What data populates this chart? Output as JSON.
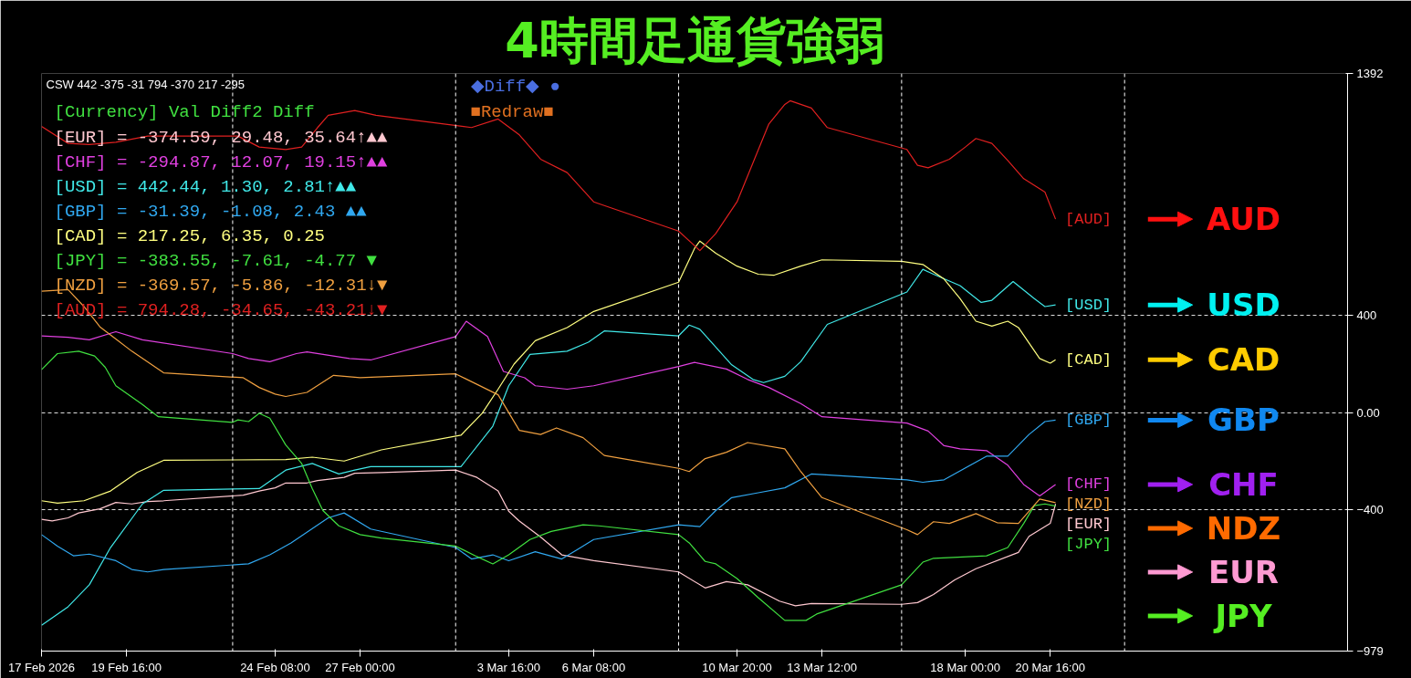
{
  "chart_data": {
    "type": "line",
    "title": "4時間足通貨強弱",
    "xlim": [
      "2026-02-17T00:00",
      "2026-03-30T00:00"
    ],
    "ylim": [
      -979,
      1392
    ],
    "xticks": [
      {
        "value": "2026-02-17T00:00",
        "label": "17 Feb 2026"
      },
      {
        "value": "2026-02-19T16:00",
        "label": "19 Feb 16:00"
      },
      {
        "value": "2026-02-24T08:00",
        "label": "24 Feb 08:00"
      },
      {
        "value": "2026-02-27T00:00",
        "label": "27 Feb 00:00"
      },
      {
        "value": "2026-03-03T16:00",
        "label": "3 Mar 16:00"
      },
      {
        "value": "2026-03-06T08:00",
        "label": "6 Mar 08:00"
      },
      {
        "value": "2026-03-10T20:00",
        "label": "10 Mar 20:00"
      },
      {
        "value": "2026-03-13T12:00",
        "label": "13 Mar 12:00"
      },
      {
        "value": "2026-03-18T00:00",
        "label": "18 Mar 00:00"
      },
      {
        "value": "2026-03-20T16:00",
        "label": "20 Mar 16:00"
      }
    ],
    "yticks": [
      1392,
      400,
      {
        "value": 0,
        "label": "0.00"
      },
      -400,
      -979
    ],
    "grid": "y",
    "legend": false,
    "ref_lines": [
      {
        "axis": "x",
        "value": "2026-02-23T00:00",
        "color": "#ffffff",
        "line_style": "dashed"
      },
      {
        "axis": "x",
        "value": "2026-03-02T00:00",
        "color": "#ffffff",
        "line_style": "dashed"
      },
      {
        "axis": "x",
        "value": "2026-03-09T00:00",
        "color": "#ffffff",
        "line_style": "dashed"
      },
      {
        "axis": "x",
        "value": "2026-03-16T00:00",
        "color": "#ffffff",
        "line_style": "dashed"
      },
      {
        "axis": "x",
        "value": "2026-03-23T00:00",
        "color": "#ffffff",
        "line_style": "dashed"
      }
    ],
    "series": [
      {
        "name": "[EUR]",
        "color": "#ffc8d0",
        "x": [
          "2026-02-17T00:00",
          "2026-02-17T08:00",
          "2026-02-17T20:00",
          "2026-02-18T04:00",
          "2026-02-18T20:00",
          "2026-02-19T08:00",
          "2026-02-19T20:00",
          "2026-02-20T08:00",
          "2026-02-20T20:00",
          "2026-02-23T08:00",
          "2026-02-23T20:00",
          "2026-02-24T08:00",
          "2026-02-24T16:00",
          "2026-02-25T08:00",
          "2026-02-25T16:00",
          "2026-02-26T12:00",
          "2026-02-26T20:00",
          "2026-02-27T16:00",
          "2026-03-02T00:00",
          "2026-03-02T16:00",
          "2026-03-03T08:00",
          "2026-03-03T16:00",
          "2026-03-04T00:00",
          "2026-03-04T16:00",
          "2026-03-05T08:00",
          "2026-03-06T08:00",
          "2026-03-09T00:00",
          "2026-03-09T20:00",
          "2026-03-10T12:00",
          "2026-03-11T04:00",
          "2026-03-12T04:00",
          "2026-03-12T16:00",
          "2026-03-13T04:00",
          "2026-03-16T00:00",
          "2026-03-16T12:00",
          "2026-03-17T00:00",
          "2026-03-17T16:00",
          "2026-03-18T08:00",
          "2026-03-19T16:00",
          "2026-03-20T00:00",
          "2026-03-20T16:00",
          "2026-03-20T20:00"
        ],
        "values": [
          -438,
          -445,
          -432,
          -412,
          -395,
          -369,
          -375,
          -365,
          -362,
          -339,
          -322,
          -309,
          -289,
          -289,
          -279,
          -266,
          -249,
          -246,
          -236,
          -266,
          -322,
          -405,
          -445,
          -511,
          -584,
          -608,
          -654,
          -720,
          -694,
          -707,
          -774,
          -793,
          -784,
          -787,
          -780,
          -747,
          -687,
          -641,
          -574,
          -508,
          -455,
          -375
        ]
      },
      {
        "name": "[CHF]",
        "color": "#e040e0",
        "x": [
          "2026-02-17T00:00",
          "2026-02-17T20:00",
          "2026-02-18T12:00",
          "2026-02-19T08:00",
          "2026-02-20T04:00",
          "2026-02-23T00:00",
          "2026-02-23T12:00",
          "2026-02-24T04:00",
          "2026-02-25T00:00",
          "2026-02-25T08:00",
          "2026-02-26T16:00",
          "2026-02-27T08:00",
          "2026-03-02T00:00",
          "2026-03-02T08:00",
          "2026-03-03T00:00",
          "2026-03-03T12:00",
          "2026-03-04T04:00",
          "2026-03-04T12:00",
          "2026-03-05T12:00",
          "2026-03-06T08:00",
          "2026-03-09T00:00",
          "2026-03-09T12:00",
          "2026-03-10T12:00",
          "2026-03-11T04:00",
          "2026-03-11T20:00",
          "2026-03-12T20:00",
          "2026-03-13T12:00",
          "2026-03-16T04:00",
          "2026-03-16T20:00",
          "2026-03-17T08:00",
          "2026-03-17T20:00",
          "2026-03-18T16:00",
          "2026-03-19T08:00",
          "2026-03-19T20:00",
          "2026-03-20T08:00",
          "2026-03-20T20:00"
        ],
        "values": [
          315,
          309,
          299,
          332,
          299,
          242,
          222,
          209,
          242,
          249,
          222,
          216,
          312,
          375,
          312,
          169,
          143,
          110,
          96,
          110,
          189,
          206,
          179,
          136,
          103,
          37,
          -17,
          -43,
          -76,
          -136,
          -149,
          -156,
          -216,
          -295,
          -342,
          -295
        ]
      },
      {
        "name": "[USD]",
        "color": "#40e8e8",
        "x": [
          "2026-02-17T00:00",
          "2026-02-17T20:00",
          "2026-02-18T12:00",
          "2026-02-19T04:00",
          "2026-02-20T04:00",
          "2026-02-20T20:00",
          "2026-02-23T20:00",
          "2026-02-24T16:00",
          "2026-02-25T12:00",
          "2026-02-26T08:00",
          "2026-02-26T20:00",
          "2026-02-27T08:00",
          "2026-03-02T04:00",
          "2026-03-03T04:00",
          "2026-03-03T16:00",
          "2026-03-04T08:00",
          "2026-03-05T12:00",
          "2026-03-06T04:00",
          "2026-03-06T16:00",
          "2026-03-09T00:00",
          "2026-03-09T08:00",
          "2026-03-09T16:00",
          "2026-03-10T04:00",
          "2026-03-10T16:00",
          "2026-03-11T08:00",
          "2026-03-11T16:00",
          "2026-03-12T08:00",
          "2026-03-12T20:00",
          "2026-03-13T16:00",
          "2026-03-16T04:00",
          "2026-03-16T16:00",
          "2026-03-17T00:00",
          "2026-03-17T20:00",
          "2026-03-18T12:00",
          "2026-03-18T20:00",
          "2026-03-19T12:00",
          "2026-03-20T04:00",
          "2026-03-20T12:00",
          "2026-03-20T20:00"
        ],
        "values": [
          -873,
          -797,
          -707,
          -554,
          -375,
          -319,
          -312,
          -236,
          -209,
          -252,
          -236,
          -222,
          -222,
          -56,
          110,
          239,
          252,
          289,
          335,
          315,
          359,
          342,
          269,
          196,
          136,
          123,
          149,
          209,
          362,
          495,
          588,
          568,
          521,
          452,
          461,
          538,
          468,
          435,
          442
        ]
      },
      {
        "name": "[GBP]",
        "color": "#30a8f0",
        "x": [
          "2026-02-17T00:00",
          "2026-02-17T12:00",
          "2026-02-18T00:00",
          "2026-02-18T12:00",
          "2026-02-19T08:00",
          "2026-02-19T20:00",
          "2026-02-20T08:00",
          "2026-02-20T20:00",
          "2026-02-23T12:00",
          "2026-02-24T04:00",
          "2026-02-24T20:00",
          "2026-02-26T00:00",
          "2026-02-26T12:00",
          "2026-02-27T08:00",
          "2026-03-02T00:00",
          "2026-03-02T12:00",
          "2026-03-03T04:00",
          "2026-03-03T16:00",
          "2026-03-04T12:00",
          "2026-03-05T08:00",
          "2026-03-05T20:00",
          "2026-03-06T08:00",
          "2026-03-09T00:00",
          "2026-03-09T16:00",
          "2026-03-10T04:00",
          "2026-03-10T16:00",
          "2026-03-11T12:00",
          "2026-03-12T08:00",
          "2026-03-13T04:00",
          "2026-03-16T04:00",
          "2026-03-16T16:00",
          "2026-03-17T08:00",
          "2026-03-18T16:00",
          "2026-03-19T08:00",
          "2026-03-20T00:00",
          "2026-03-20T12:00",
          "2026-03-20T20:00"
        ],
        "values": [
          -501,
          -548,
          -588,
          -581,
          -608,
          -644,
          -654,
          -644,
          -621,
          -584,
          -535,
          -432,
          -412,
          -478,
          -554,
          -601,
          -584,
          -608,
          -571,
          -601,
          -561,
          -521,
          -461,
          -468,
          -402,
          -349,
          -329,
          -309,
          -252,
          -276,
          -286,
          -276,
          -179,
          -179,
          -90,
          -37,
          -31
        ]
      },
      {
        "name": "[CAD]",
        "color": "#ffff80",
        "x": [
          "2026-02-17T00:00",
          "2026-02-17T12:00",
          "2026-02-18T08:00",
          "2026-02-19T04:00",
          "2026-02-20T00:00",
          "2026-02-20T20:00",
          "2026-02-24T16:00",
          "2026-02-25T12:00",
          "2026-02-26T12:00",
          "2026-02-27T16:00",
          "2026-03-02T04:00",
          "2026-03-02T20:00",
          "2026-03-03T08:00",
          "2026-03-03T20:00",
          "2026-03-04T12:00",
          "2026-03-05T12:00",
          "2026-03-06T08:00",
          "2026-03-09T00:00",
          "2026-03-09T12:00",
          "2026-03-09T16:00",
          "2026-03-10T04:00",
          "2026-03-10T20:00",
          "2026-03-11T12:00",
          "2026-03-12T00:00",
          "2026-03-12T20:00",
          "2026-03-13T12:00",
          "2026-03-16T00:00",
          "2026-03-16T16:00",
          "2026-03-17T08:00",
          "2026-03-17T20:00",
          "2026-03-18T08:00",
          "2026-03-18T20:00",
          "2026-03-19T08:00",
          "2026-03-19T16:00",
          "2026-03-20T08:00",
          "2026-03-20T16:00",
          "2026-03-20T20:00"
        ],
        "values": [
          -362,
          -372,
          -362,
          -322,
          -246,
          -196,
          -193,
          -183,
          -199,
          -153,
          -93,
          -3,
          96,
          199,
          295,
          349,
          415,
          535,
          674,
          704,
          654,
          601,
          568,
          564,
          601,
          627,
          621,
          608,
          548,
          468,
          375,
          355,
          375,
          349,
          222,
          203,
          217
        ]
      },
      {
        "name": "[JPY]",
        "color": "#40e040",
        "x": [
          "2026-02-17T00:00",
          "2026-02-17T12:00",
          "2026-02-18T04:00",
          "2026-02-18T16:00",
          "2026-02-19T00:00",
          "2026-02-19T08:00",
          "2026-02-20T04:00",
          "2026-02-20T16:00",
          "2026-02-23T00:00",
          "2026-02-23T04:00",
          "2026-02-23T12:00",
          "2026-02-23T20:00",
          "2026-02-24T04:00",
          "2026-02-24T16:00",
          "2026-02-25T04:00",
          "2026-02-25T12:00",
          "2026-02-25T20:00",
          "2026-02-26T08:00",
          "2026-02-27T00:00",
          "2026-02-27T16:00",
          "2026-03-02T00:00",
          "2026-03-02T16:00",
          "2026-03-03T04:00",
          "2026-03-03T16:00",
          "2026-03-04T08:00",
          "2026-03-05T00:00",
          "2026-03-06T00:00",
          "2026-03-06T12:00",
          "2026-03-09T00:00",
          "2026-03-09T08:00",
          "2026-03-09T20:00",
          "2026-03-10T04:00",
          "2026-03-10T20:00",
          "2026-03-11T12:00",
          "2026-03-12T08:00",
          "2026-03-13T00:00",
          "2026-03-13T08:00",
          "2026-03-16T00:00",
          "2026-03-16T16:00",
          "2026-03-17T00:00",
          "2026-03-18T16:00",
          "2026-03-19T08:00",
          "2026-03-19T20:00",
          "2026-03-20T04:00",
          "2026-03-20T12:00",
          "2026-03-20T20:00"
        ],
        "values": [
          176,
          242,
          252,
          232,
          186,
          110,
          33,
          -17,
          -40,
          -30,
          -37,
          -3,
          -23,
          -133,
          -209,
          -312,
          -402,
          -465,
          -501,
          -515,
          -548,
          -591,
          -621,
          -584,
          -521,
          -488,
          -461,
          -465,
          -501,
          -535,
          -611,
          -621,
          -681,
          -760,
          -853,
          -853,
          -827,
          -707,
          -614,
          -598,
          -588,
          -554,
          -455,
          -382,
          -375,
          -384
        ]
      },
      {
        "name": "[NZD]",
        "color": "#f0a040",
        "x": [
          "2026-02-17T00:00",
          "2026-02-17T20:00",
          "2026-02-18T08:00",
          "2026-02-18T20:00",
          "2026-02-19T08:00",
          "2026-02-19T20:00",
          "2026-02-20T20:00",
          "2026-02-23T08:00",
          "2026-02-23T20:00",
          "2026-02-24T08:00",
          "2026-02-24T16:00",
          "2026-02-25T08:00",
          "2026-02-26T04:00",
          "2026-02-27T00:00",
          "2026-03-02T00:00",
          "2026-03-02T16:00",
          "2026-03-03T08:00",
          "2026-03-04T00:00",
          "2026-03-04T16:00",
          "2026-03-05T04:00",
          "2026-03-06T00:00",
          "2026-03-06T16:00",
          "2026-03-09T00:00",
          "2026-03-09T08:00",
          "2026-03-09T20:00",
          "2026-03-10T12:00",
          "2026-03-11T04:00",
          "2026-03-12T08:00",
          "2026-03-12T20:00",
          "2026-03-13T12:00",
          "2026-03-16T04:00",
          "2026-03-16T12:00",
          "2026-03-17T00:00",
          "2026-03-17T12:00",
          "2026-03-18T08:00",
          "2026-03-19T00:00",
          "2026-03-19T16:00",
          "2026-03-20T08:00",
          "2026-03-20T20:00"
        ],
        "values": [
          498,
          505,
          435,
          352,
          302,
          252,
          163,
          143,
          103,
          76,
          66,
          83,
          153,
          143,
          159,
          116,
          73,
          -73,
          -90,
          -63,
          -103,
          -176,
          -229,
          -242,
          -189,
          -163,
          -123,
          -149,
          -242,
          -349,
          -481,
          -501,
          -448,
          -455,
          -415,
          -452,
          -455,
          -355,
          -370
        ]
      },
      {
        "name": "[AUD]",
        "color": "#e02020",
        "x": [
          "2026-02-17T00:00",
          "2026-02-17T20:00",
          "2026-02-18T12:00",
          "2026-02-19T08:00",
          "2026-02-20T08:00",
          "2026-02-23T04:00",
          "2026-02-23T20:00",
          "2026-02-24T16:00",
          "2026-02-25T04:00",
          "2026-02-25T16:00",
          "2026-02-26T00:00",
          "2026-02-26T20:00",
          "2026-02-27T12:00",
          "2026-03-02T12:00",
          "2026-03-03T08:00",
          "2026-03-04T00:00",
          "2026-03-04T16:00",
          "2026-03-05T12:00",
          "2026-03-06T08:00",
          "2026-03-09T00:00",
          "2026-03-09T16:00",
          "2026-03-10T04:00",
          "2026-03-10T20:00",
          "2026-03-11T08:00",
          "2026-03-11T20:00",
          "2026-03-12T08:00",
          "2026-03-12T12:00",
          "2026-03-13T04:00",
          "2026-03-13T16:00",
          "2026-03-16T04:00",
          "2026-03-16T12:00",
          "2026-03-16T20:00",
          "2026-03-17T12:00",
          "2026-03-18T00:00",
          "2026-03-18T08:00",
          "2026-03-18T20:00",
          "2026-03-19T08:00",
          "2026-03-19T20:00",
          "2026-03-20T12:00",
          "2026-03-20T20:00"
        ],
        "values": [
          1175,
          1105,
          1100,
          1110,
          1135,
          1135,
          1090,
          1080,
          1090,
          1170,
          1220,
          1240,
          1220,
          1170,
          1205,
          1140,
          1040,
          985,
          865,
          745,
          665,
          735,
          865,
          1025,
          1185,
          1265,
          1280,
          1250,
          1170,
          1080,
          1015,
          1005,
          1040,
          1090,
          1125,
          1105,
          1035,
          960,
          905,
          794
        ]
      }
    ],
    "annotations": [
      "CSW 442 -375 -31 794 -370 217 -295",
      "[Currency]  Val    Diff2    Diff",
      "[EUR] = -374.59,  29.48,  35.64↑▲▲",
      "[CHF] = -294.87,  12.07,  19.15↑▲▲",
      "[USD] =  442.44,   1.30,   2.81↑▲▲",
      "[GBP] =  -31.39,  -1.08,   2.43 ▲▲",
      "[CAD] =  217.25,   6.35,   0.25",
      "[JPY] = -383.55,  -7.61,  -4.77 ▼",
      "[NZD] = -369.57,  -5.86, -12.31↓▼",
      "[AUD] =  794.28, -34.65, -43.21↓▼",
      "◆Diff◆ ●",
      "■Redraw■",
      "EUR",
      "CHF",
      "USD",
      "GBP",
      "CAD",
      "JPY",
      "NDZ",
      "AUD"
    ]
  }
}
